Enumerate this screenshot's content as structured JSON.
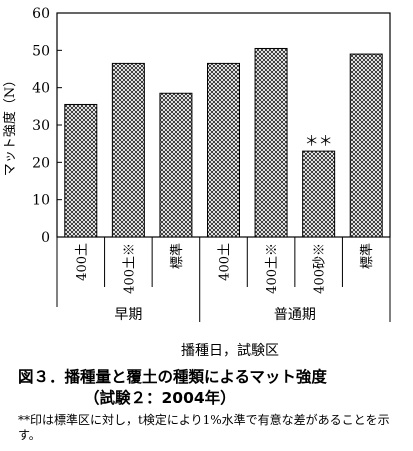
{
  "chart_data": {
    "type": "bar",
    "ylabel": "マット強度（N）",
    "xlabel": "播種日，試験区",
    "ylim": [
      0,
      60
    ],
    "yticks": [
      0,
      10,
      20,
      30,
      40,
      50,
      60
    ],
    "categories": [
      "400土",
      "400土※",
      "標準",
      "400土",
      "400土※",
      "400砂※",
      "標準"
    ],
    "groups": [
      {
        "label": "早期",
        "count": 3
      },
      {
        "label": "普通期",
        "count": 4
      }
    ],
    "values": [
      35.5,
      46.5,
      38.5,
      46.5,
      50.5,
      23,
      49
    ],
    "annotations": [
      "",
      "",
      "",
      "",
      "",
      "＊＊",
      ""
    ],
    "bar_fill": "crosshatch"
  },
  "caption": {
    "line1": "図３．播種量と覆土の種類によるマット強度",
    "line2": "（試験２：2004年）"
  },
  "footnote": "**印は標準区に対し，t検定により1%水準で有意な差があることを示す。"
}
